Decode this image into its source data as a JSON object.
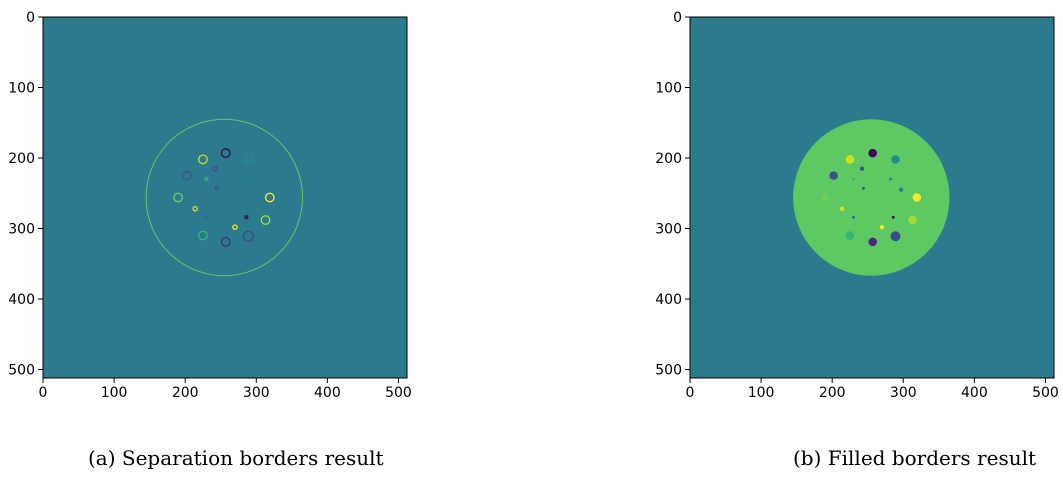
{
  "colors": {
    "background": "#2c7a8d",
    "viridis_dark": "#440154",
    "viridis_mid_dark": "#3b528b",
    "viridis_teal": "#21908c",
    "viridis_green": "#5ec962",
    "viridis_yellow": "#fde725"
  },
  "chart_data": [
    {
      "type": "heatmap",
      "caption": "(a) Separation borders result",
      "xticks": [
        0,
        100,
        200,
        300,
        400,
        500
      ],
      "yticks": [
        0,
        100,
        200,
        300,
        400,
        500
      ],
      "xlim": [
        0,
        511
      ],
      "ylim": [
        0,
        511
      ],
      "grid": false,
      "background_color": "#2c7a8d",
      "big_circle": {
        "cx": 255,
        "cy": 256,
        "r": 110,
        "color": "#5ec962",
        "style": "outline"
      },
      "blobs": [
        {
          "cx": 257,
          "cy": 193,
          "r": 6,
          "color": "#440154"
        },
        {
          "cx": 225,
          "cy": 202,
          "r": 6,
          "color": "#cbe11e"
        },
        {
          "cx": 289,
          "cy": 202,
          "r": 6,
          "color": "#21908c"
        },
        {
          "cx": 202,
          "cy": 225,
          "r": 6,
          "color": "#3b528b"
        },
        {
          "cx": 190,
          "cy": 256,
          "r": 6,
          "color": "#6cce59"
        },
        {
          "cx": 319,
          "cy": 256,
          "r": 6,
          "color": "#fde725"
        },
        {
          "cx": 313,
          "cy": 288,
          "r": 6,
          "color": "#a5db36"
        },
        {
          "cx": 225,
          "cy": 310,
          "r": 6,
          "color": "#35b779"
        },
        {
          "cx": 257,
          "cy": 319,
          "r": 6,
          "color": "#482878"
        },
        {
          "cx": 289,
          "cy": 311,
          "r": 7,
          "color": "#3e4989"
        },
        {
          "cx": 242,
          "cy": 215,
          "r": 3,
          "color": "#3b528b"
        },
        {
          "cx": 230,
          "cy": 230,
          "r": 2,
          "color": "#35b779"
        },
        {
          "cx": 282,
          "cy": 230,
          "r": 2,
          "color": "#26828e"
        },
        {
          "cx": 297,
          "cy": 245,
          "r": 3,
          "color": "#2a788e"
        },
        {
          "cx": 214,
          "cy": 272,
          "r": 3,
          "color": "#d8e219"
        },
        {
          "cx": 230,
          "cy": 284,
          "r": 2,
          "color": "#31688e"
        },
        {
          "cx": 286,
          "cy": 284,
          "r": 2,
          "color": "#440154"
        },
        {
          "cx": 270,
          "cy": 298,
          "r": 3,
          "color": "#fde725"
        },
        {
          "cx": 244,
          "cy": 243,
          "r": 2,
          "color": "#3b528b"
        }
      ]
    },
    {
      "type": "heatmap",
      "caption": "(b) Filled borders result",
      "xticks": [
        0,
        100,
        200,
        300,
        400,
        500
      ],
      "yticks": [
        0,
        100,
        200,
        300,
        400,
        500
      ],
      "xlim": [
        0,
        511
      ],
      "ylim": [
        0,
        511
      ],
      "grid": false,
      "background_color": "#2c7a8d",
      "big_circle": {
        "cx": 255,
        "cy": 256,
        "r": 110,
        "color": "#5ec962",
        "style": "filled"
      },
      "blobs": [
        {
          "cx": 257,
          "cy": 193,
          "r": 6,
          "color": "#440154"
        },
        {
          "cx": 225,
          "cy": 202,
          "r": 6,
          "color": "#cbe11e"
        },
        {
          "cx": 289,
          "cy": 202,
          "r": 6,
          "color": "#21908c"
        },
        {
          "cx": 202,
          "cy": 225,
          "r": 6,
          "color": "#3b528b"
        },
        {
          "cx": 190,
          "cy": 256,
          "r": 6,
          "color": "#6cce59"
        },
        {
          "cx": 319,
          "cy": 256,
          "r": 6,
          "color": "#fde725"
        },
        {
          "cx": 313,
          "cy": 288,
          "r": 6,
          "color": "#a5db36"
        },
        {
          "cx": 225,
          "cy": 310,
          "r": 6,
          "color": "#35b779"
        },
        {
          "cx": 257,
          "cy": 319,
          "r": 6,
          "color": "#482878"
        },
        {
          "cx": 289,
          "cy": 311,
          "r": 7,
          "color": "#3e4989"
        },
        {
          "cx": 242,
          "cy": 215,
          "r": 3,
          "color": "#3b528b"
        },
        {
          "cx": 230,
          "cy": 230,
          "r": 2,
          "color": "#35b779"
        },
        {
          "cx": 282,
          "cy": 230,
          "r": 2,
          "color": "#26828e"
        },
        {
          "cx": 297,
          "cy": 245,
          "r": 3,
          "color": "#2a788e"
        },
        {
          "cx": 214,
          "cy": 272,
          "r": 3,
          "color": "#d8e219"
        },
        {
          "cx": 230,
          "cy": 284,
          "r": 2,
          "color": "#31688e"
        },
        {
          "cx": 286,
          "cy": 284,
          "r": 2,
          "color": "#440154"
        },
        {
          "cx": 270,
          "cy": 298,
          "r": 3,
          "color": "#fde725"
        },
        {
          "cx": 244,
          "cy": 243,
          "r": 2,
          "color": "#3b528b"
        }
      ]
    }
  ]
}
